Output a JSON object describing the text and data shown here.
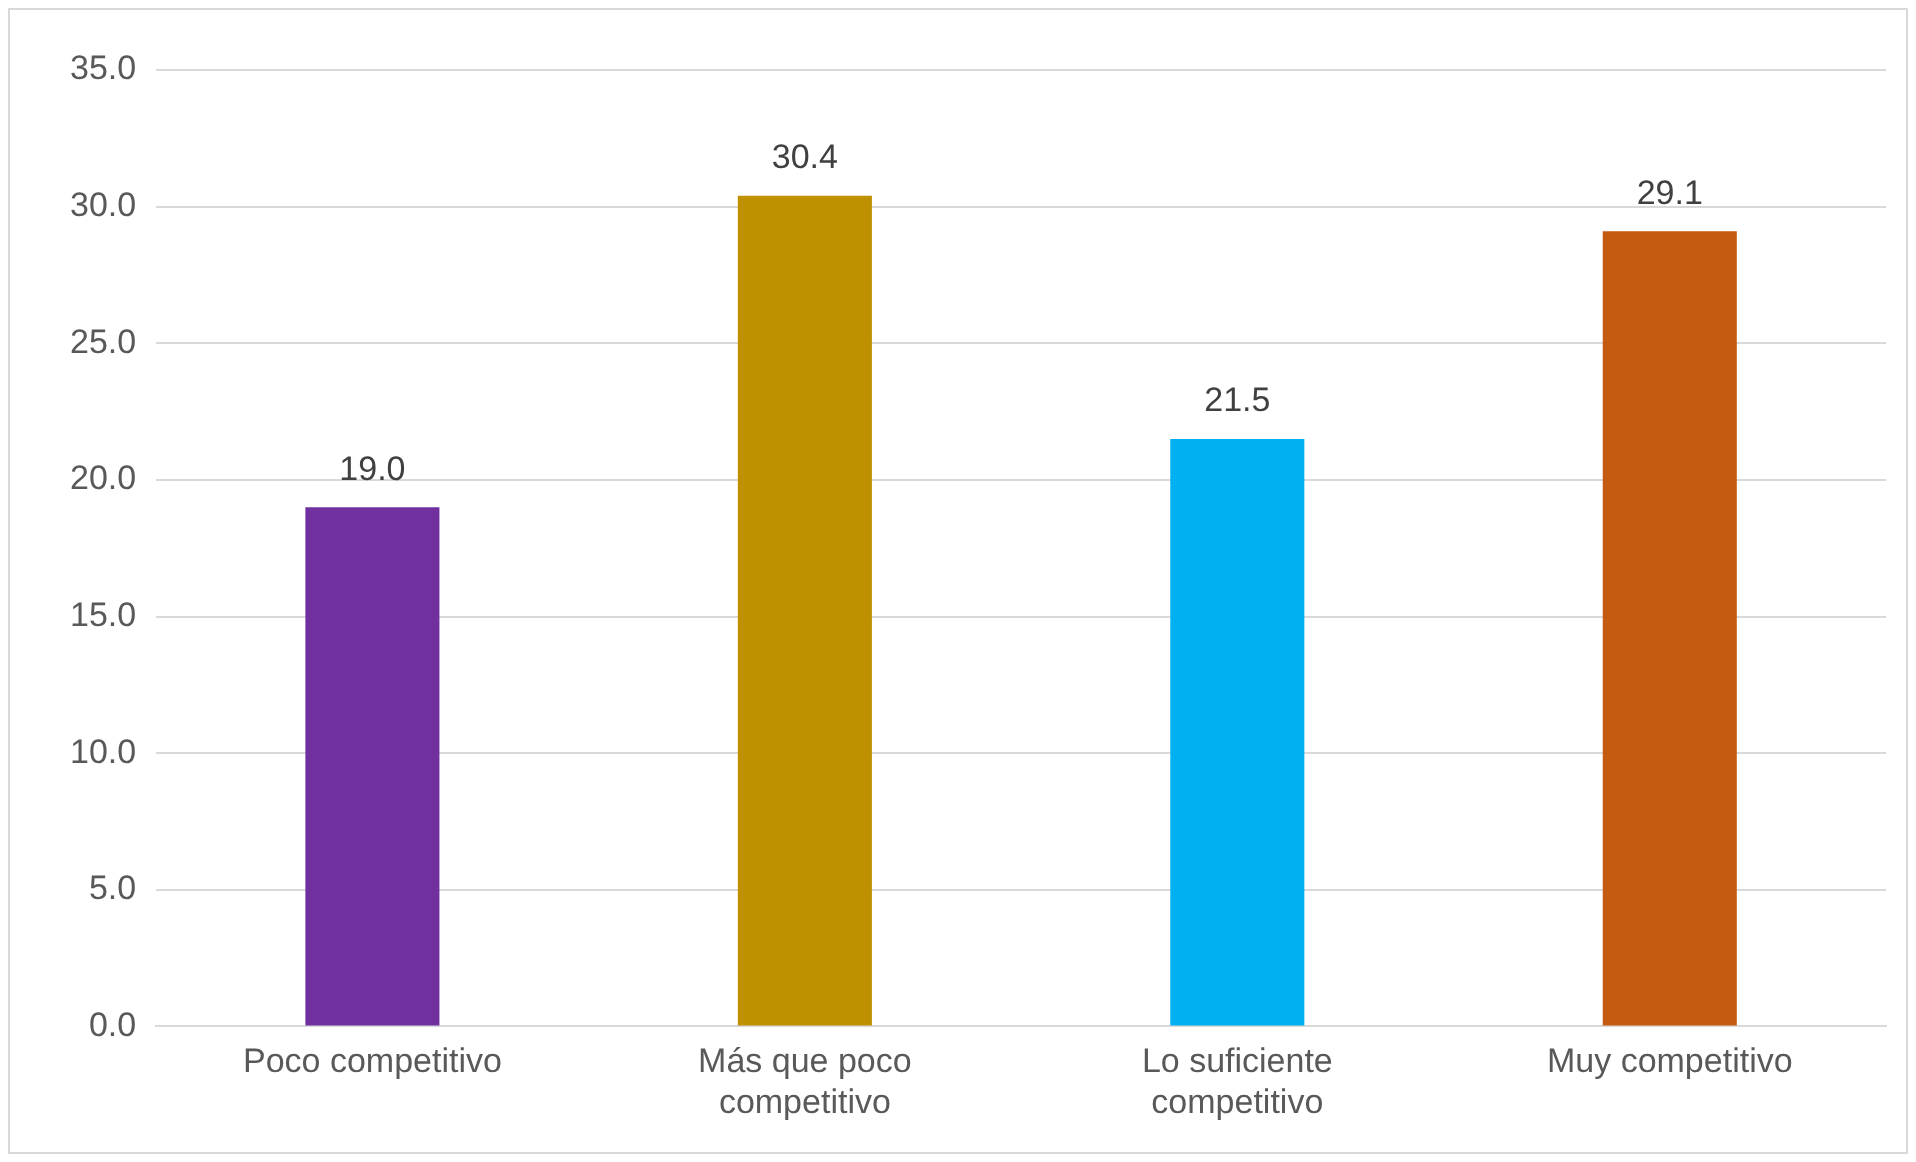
{
  "chart_data": {
    "type": "bar",
    "categories": [
      "Poco competitivo",
      "Más que poco competitivo",
      "Lo suficiente competitivo",
      "Muy competitivo"
    ],
    "values": [
      19.0,
      30.4,
      21.5,
      29.1
    ],
    "colors": [
      "#7030a0",
      "#bf9000",
      "#00b0f0",
      "#c55a11"
    ],
    "value_labels": [
      "19.0",
      "30.4",
      "21.5",
      "29.1"
    ],
    "ylim": [
      0,
      35
    ],
    "yticks": [
      {
        "value": 0,
        "label": "0.0"
      },
      {
        "value": 5,
        "label": "5.0"
      },
      {
        "value": 10,
        "label": "10.0"
      },
      {
        "value": 15,
        "label": "15.0"
      },
      {
        "value": 20,
        "label": "20.0"
      },
      {
        "value": 25,
        "label": "25.0"
      },
      {
        "value": 30,
        "label": "30.0"
      },
      {
        "value": 35,
        "label": "35.0"
      }
    ],
    "grid": "y"
  }
}
